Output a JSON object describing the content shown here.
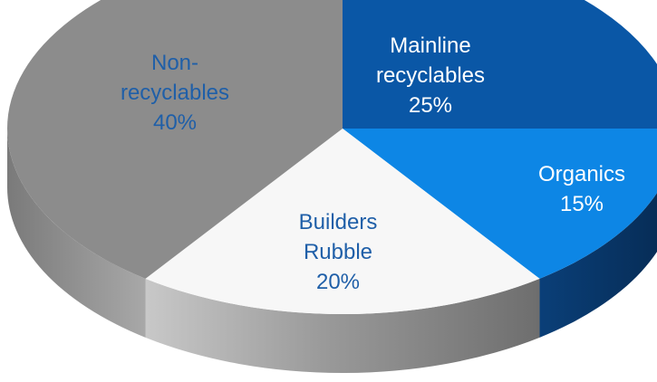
{
  "chart_data": {
    "type": "pie",
    "style": "3d",
    "title": "",
    "slices": [
      {
        "name": "Mainline recyclables",
        "label_lines": [
          "Mainline",
          "recyclables",
          "25%"
        ],
        "value": 25,
        "color": "#0a57a6",
        "text_color": "#ffffff"
      },
      {
        "name": "Organics",
        "label_lines": [
          "Organics",
          "15%"
        ],
        "value": 15,
        "color": "#0d86e5",
        "text_color": "#ffffff"
      },
      {
        "name": "Builders Rubble",
        "label_lines": [
          "Builders",
          "Rubble",
          "20%"
        ],
        "value": 20,
        "color": "#f7f7f7",
        "text_color": "#1f5fa8"
      },
      {
        "name": "Non-recyclables",
        "label_lines": [
          "Non-",
          "recyclables",
          "40%"
        ],
        "value": 40,
        "color": "#8c8c8c",
        "text_color": "#1f5fa8"
      }
    ]
  }
}
